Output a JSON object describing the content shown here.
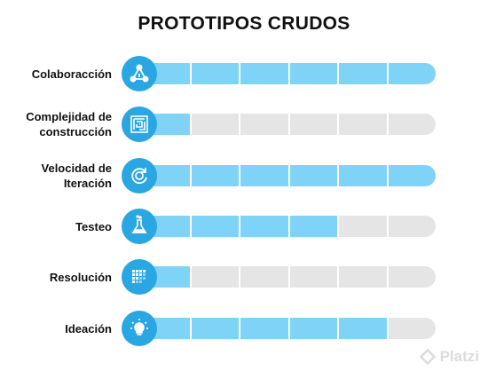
{
  "title": "PROTOTIPOS CRUDOS",
  "rows": [
    {
      "label_lines": [
        "Colaboracción"
      ],
      "icon": "collaboration-triangle-icon",
      "level": 6,
      "max": 6
    },
    {
      "label_lines": [
        "Complejidad de",
        "construcción"
      ],
      "icon": "maze-icon",
      "level": 1,
      "max": 6
    },
    {
      "label_lines": [
        "Velocidad de",
        "Iteración"
      ],
      "icon": "refresh-cycle-icon",
      "level": 6,
      "max": 6
    },
    {
      "label_lines": [
        "Testeo"
      ],
      "icon": "flask-icon",
      "level": 4,
      "max": 6
    },
    {
      "label_lines": [
        "Resolución"
      ],
      "icon": "pixel-grid-icon",
      "level": 1,
      "max": 6
    },
    {
      "label_lines": [
        "Ideación"
      ],
      "icon": "lightbulb-icon",
      "level": 5,
      "max": 6
    }
  ],
  "colors": {
    "fill": "#7ed3f7",
    "track": "#e5e5e5",
    "icon_bg": "#2aa6e2",
    "text": "#111111"
  },
  "watermark": {
    "text": "Platzi",
    "icon": "platzi-logo-icon"
  }
}
